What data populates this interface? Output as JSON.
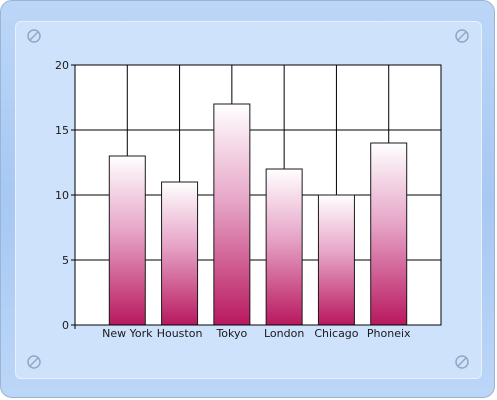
{
  "chart_data": {
    "type": "bar",
    "categories": [
      "New York",
      "Houston",
      "Tokyo",
      "London",
      "Chicago",
      "Phoneix"
    ],
    "values": [
      13,
      11,
      17,
      12,
      10,
      14
    ],
    "ylim": [
      0,
      20
    ],
    "yticks": [
      0,
      5,
      10,
      15,
      20
    ],
    "grid": true,
    "legend": "none",
    "bar_gradient": [
      "#ffffff",
      "#b8185e"
    ],
    "plot_background": "#ffffff",
    "grid_color": "#000000"
  },
  "frame": {
    "colors": {
      "outer": "#b0cdf4",
      "inner": "#cfe2fb"
    },
    "screw_icon": "screw-icon"
  }
}
